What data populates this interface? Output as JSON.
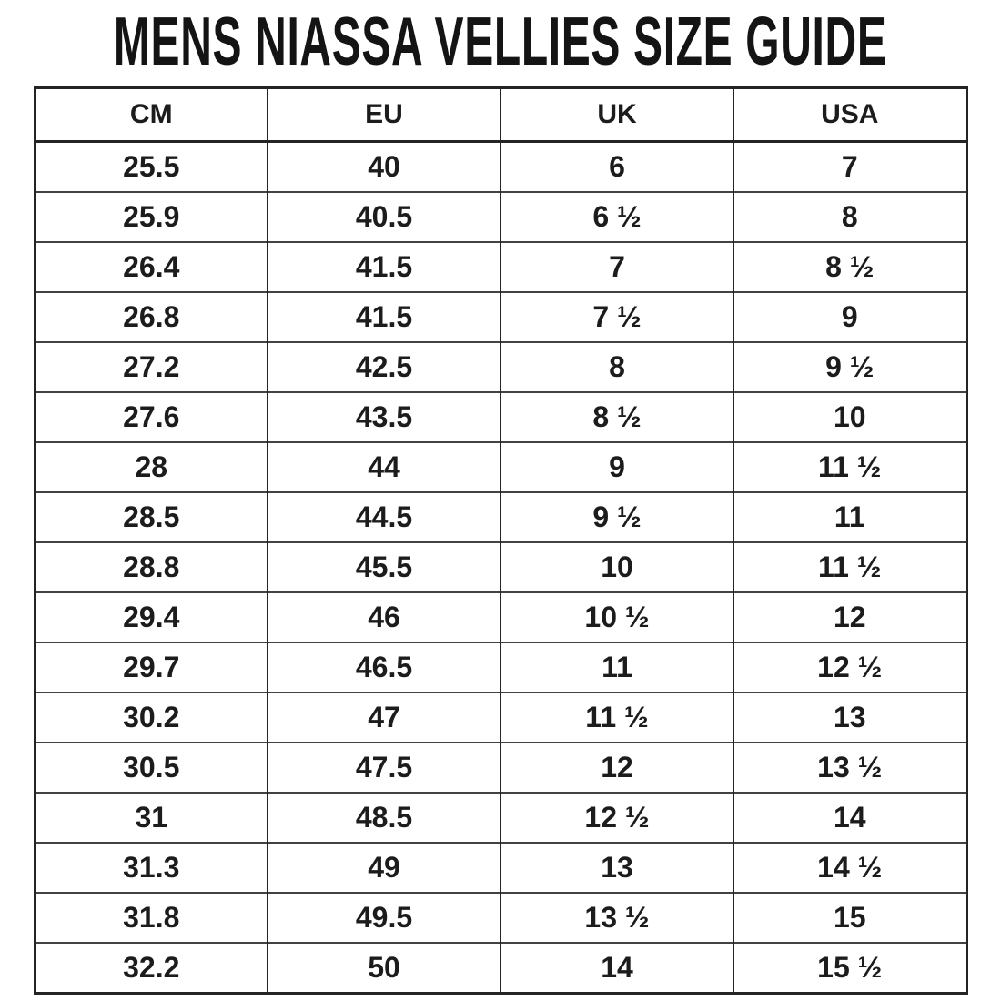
{
  "page": {
    "title": "MENS NIASSA VELLIES SIZE GUIDE"
  },
  "size_table": {
    "headers": [
      "CM",
      "EU",
      "UK",
      "USA"
    ],
    "rows": [
      [
        "25.5",
        "40",
        "6",
        "7"
      ],
      [
        "25.9",
        "40.5",
        "6 ½",
        "8"
      ],
      [
        "26.4",
        "41.5",
        "7",
        "8 ½"
      ],
      [
        "26.8",
        "41.5",
        "7 ½",
        "9"
      ],
      [
        "27.2",
        "42.5",
        "8",
        "9 ½"
      ],
      [
        "27.6",
        "43.5",
        "8 ½",
        "10"
      ],
      [
        "28",
        "44",
        "9",
        "11 ½"
      ],
      [
        "28.5",
        "44.5",
        "9 ½",
        "11"
      ],
      [
        "28.8",
        "45.5",
        "10",
        "11 ½"
      ],
      [
        "29.4",
        "46",
        "10 ½",
        "12"
      ],
      [
        "29.7",
        "46.5",
        "11",
        "12 ½"
      ],
      [
        "30.2",
        "47",
        "11 ½",
        "13"
      ],
      [
        "30.5",
        "47.5",
        "12",
        "13 ½"
      ],
      [
        "31",
        "48.5",
        "12 ½",
        "14"
      ],
      [
        "31.3",
        "49",
        "13",
        "14 ½"
      ],
      [
        "31.8",
        "49.5",
        "13 ½",
        "15"
      ],
      [
        "32.2",
        "50",
        "14",
        "15 ½"
      ]
    ]
  },
  "colors": {
    "background": "#ffffff",
    "text": "#1c1c1c",
    "border_strong": "#242424",
    "border_row": "#424242"
  }
}
